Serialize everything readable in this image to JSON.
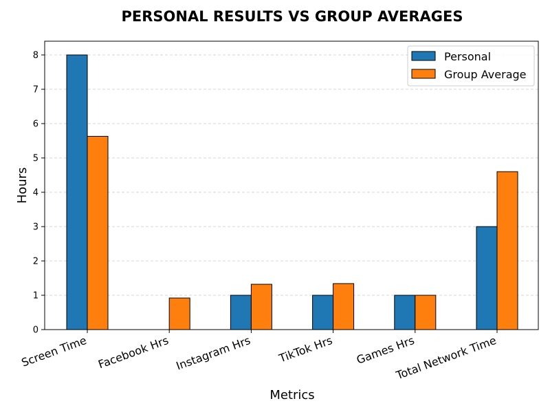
{
  "chart_data": {
    "type": "bar",
    "title": "PERSONAL RESULTS VS GROUP AVERAGES",
    "xlabel": "Metrics",
    "ylabel": "Hours",
    "categories": [
      "Screen Time",
      "Facebook Hrs",
      "Instagram Hrs",
      "TikTok Hrs",
      "Games Hrs",
      "Total Network Time"
    ],
    "series": [
      {
        "name": "Personal",
        "color": "#1f77b4",
        "values": [
          8,
          0,
          1,
          1,
          1,
          3
        ]
      },
      {
        "name": "Group Average",
        "color": "#ff7f0e",
        "values": [
          5.63,
          0.92,
          1.32,
          1.34,
          1.0,
          4.6
        ]
      }
    ],
    "ylim": [
      0,
      8.4
    ],
    "yticks": [
      0,
      1,
      2,
      3,
      4,
      5,
      6,
      7,
      8
    ],
    "grid": true,
    "legend_position": "top-right"
  }
}
